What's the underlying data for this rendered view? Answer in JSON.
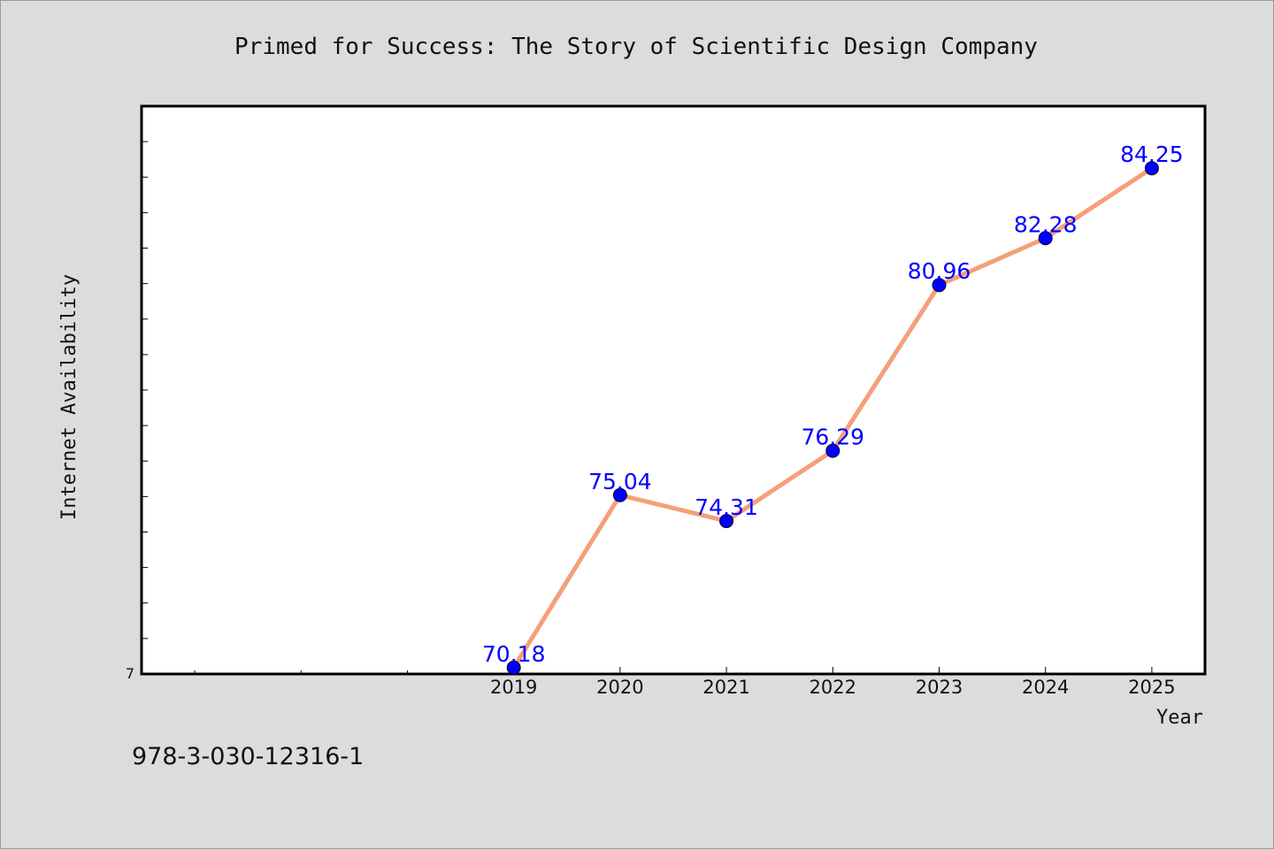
{
  "chart_data": {
    "type": "line",
    "title": "Primed for Success: The Story of Scientific Design Company",
    "xlabel": "Year",
    "ylabel": "Internet Availability",
    "categories": [
      "2019",
      "2020",
      "2021",
      "2022",
      "2023",
      "2024",
      "2025"
    ],
    "values": [
      70.18,
      75.04,
      74.31,
      76.29,
      80.96,
      82.28,
      84.25
    ],
    "value_labels": [
      "70.18",
      "75.04",
      "74.31",
      "76.29",
      "80.96",
      "82.28",
      "84.25"
    ],
    "ylim": [
      70,
      86
    ],
    "y_tick_labels": [
      "7"
    ],
    "x_extent": [
      2015.5,
      2025.5
    ],
    "line_color": "#f4a07a",
    "marker_color": "#0000ff",
    "label_color": "#0000ff",
    "grid": false,
    "legend": "none"
  },
  "footer": {
    "isbn": "978-3-030-12316-1"
  }
}
